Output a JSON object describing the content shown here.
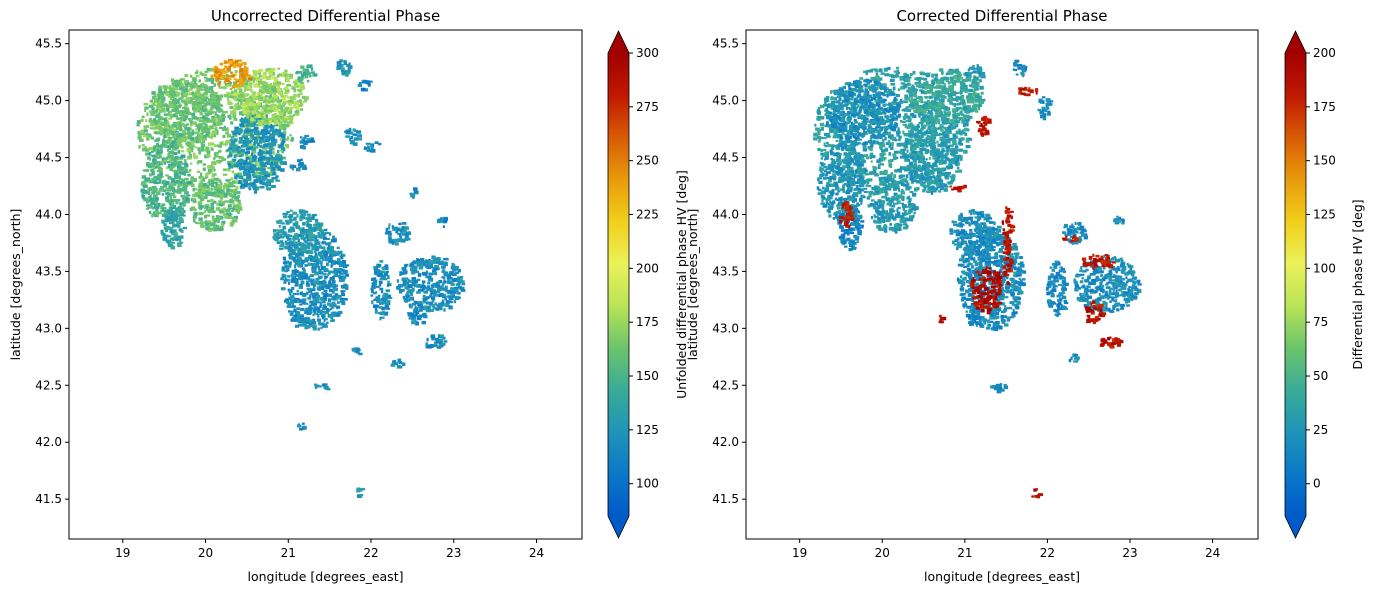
{
  "colormap": {
    "name": "HomeyerRainbow",
    "stops": [
      "#005ac8",
      "#0b78c8",
      "#1f94b8",
      "#3aab97",
      "#6cc46b",
      "#b9e457",
      "#ecf25a",
      "#f1cf1a",
      "#e89a0b",
      "#d85a05",
      "#c01800",
      "#a00000"
    ]
  },
  "chart_data": [
    {
      "type": "heatmap",
      "title": "Uncorrected Differential Phase",
      "xlabel": "longitude [degrees_east]",
      "ylabel": "latitude [degrees_north]",
      "xlim": [
        18.35,
        24.55
      ],
      "ylim": [
        41.15,
        45.62
      ],
      "xticks": [
        19,
        20,
        21,
        22,
        23,
        24
      ],
      "yticks": [
        41.5,
        42.0,
        42.5,
        43.0,
        43.5,
        44.0,
        44.5,
        45.0,
        45.5
      ],
      "colorbar": {
        "label": "Unfolded differential phase HV [deg]",
        "vmin": 85,
        "vmax": 300,
        "ticks": [
          100,
          125,
          150,
          175,
          200,
          225,
          250,
          275,
          300
        ],
        "extend": "both"
      },
      "echo_regions": [
        {
          "lon": 20.1,
          "lat": 44.75,
          "rlon": 0.95,
          "rlat": 0.55,
          "value": 165
        },
        {
          "lon": 19.75,
          "lat": 44.9,
          "rlon": 0.45,
          "rlat": 0.3,
          "value": 160
        },
        {
          "lon": 19.5,
          "lat": 44.3,
          "rlon": 0.3,
          "rlat": 0.35,
          "value": 150
        },
        {
          "lon": 20.6,
          "lat": 44.55,
          "rlon": 0.35,
          "rlat": 0.35,
          "value": 125
        },
        {
          "lon": 20.75,
          "lat": 45.05,
          "rlon": 0.45,
          "rlat": 0.25,
          "value": 175
        },
        {
          "lon": 20.3,
          "lat": 45.25,
          "rlon": 0.25,
          "rlat": 0.12,
          "value": 240
        },
        {
          "lon": 19.6,
          "lat": 43.9,
          "rlon": 0.15,
          "rlat": 0.2,
          "value": 140
        },
        {
          "lon": 20.1,
          "lat": 44.1,
          "rlon": 0.3,
          "rlat": 0.25,
          "value": 160
        },
        {
          "lon": 21.3,
          "lat": 43.45,
          "rlon": 0.4,
          "rlat": 0.45,
          "value": 120
        },
        {
          "lon": 21.1,
          "lat": 43.85,
          "rlon": 0.3,
          "rlat": 0.2,
          "value": 130
        },
        {
          "lon": 22.7,
          "lat": 43.4,
          "rlon": 0.4,
          "rlat": 0.25,
          "value": 120
        },
        {
          "lon": 22.3,
          "lat": 43.85,
          "rlon": 0.15,
          "rlat": 0.1,
          "value": 120
        },
        {
          "lon": 22.55,
          "lat": 43.15,
          "rlon": 0.12,
          "rlat": 0.1,
          "value": 120
        },
        {
          "lon": 22.75,
          "lat": 42.9,
          "rlon": 0.15,
          "rlat": 0.06,
          "value": 120
        },
        {
          "lon": 22.1,
          "lat": 43.35,
          "rlon": 0.12,
          "rlat": 0.25,
          "value": 120
        },
        {
          "lon": 21.65,
          "lat": 45.3,
          "rlon": 0.1,
          "rlat": 0.07,
          "value": 125
        },
        {
          "lon": 21.9,
          "lat": 45.15,
          "rlon": 0.08,
          "rlat": 0.05,
          "value": 115
        },
        {
          "lon": 21.75,
          "lat": 44.7,
          "rlon": 0.1,
          "rlat": 0.07,
          "value": 120
        },
        {
          "lon": 22.0,
          "lat": 44.6,
          "rlon": 0.1,
          "rlat": 0.05,
          "value": 115
        },
        {
          "lon": 21.2,
          "lat": 44.65,
          "rlon": 0.1,
          "rlat": 0.06,
          "value": 115
        },
        {
          "lon": 21.2,
          "lat": 45.25,
          "rlon": 0.12,
          "rlat": 0.08,
          "value": 150
        },
        {
          "lon": 21.1,
          "lat": 44.45,
          "rlon": 0.1,
          "rlat": 0.05,
          "value": 115
        },
        {
          "lon": 22.5,
          "lat": 44.2,
          "rlon": 0.05,
          "rlat": 0.04,
          "value": 115
        },
        {
          "lon": 21.1,
          "lat": 43.1,
          "rlon": 0.1,
          "rlat": 0.08,
          "value": 120
        },
        {
          "lon": 22.3,
          "lat": 42.7,
          "rlon": 0.08,
          "rlat": 0.04,
          "value": 115
        },
        {
          "lon": 21.4,
          "lat": 42.5,
          "rlon": 0.1,
          "rlat": 0.04,
          "value": 120
        },
        {
          "lon": 21.15,
          "lat": 42.15,
          "rlon": 0.05,
          "rlat": 0.03,
          "value": 115
        },
        {
          "lon": 21.85,
          "lat": 41.58,
          "rlon": 0.05,
          "rlat": 0.04,
          "value": 125
        },
        {
          "lon": 22.85,
          "lat": 43.95,
          "rlon": 0.06,
          "rlat": 0.05,
          "value": 115
        },
        {
          "lon": 21.8,
          "lat": 42.8,
          "rlon": 0.06,
          "rlat": 0.04,
          "value": 115
        }
      ]
    },
    {
      "type": "heatmap",
      "title": "Corrected Differential Phase",
      "xlabel": "longitude [degrees_east]",
      "ylabel": "latitude [degrees_north]",
      "xlim": [
        18.35,
        24.55
      ],
      "ylim": [
        41.15,
        45.62
      ],
      "xticks": [
        19,
        20,
        21,
        22,
        23,
        24
      ],
      "yticks": [
        41.5,
        42.0,
        42.5,
        43.0,
        43.5,
        44.0,
        44.5,
        45.0,
        45.5
      ],
      "colorbar": {
        "label": "Differential phase HV [deg]",
        "vmin": -15,
        "vmax": 200,
        "ticks": [
          0,
          25,
          50,
          75,
          100,
          125,
          150,
          175,
          200
        ],
        "extend": "both"
      },
      "echo_regions": [
        {
          "lon": 20.1,
          "lat": 44.75,
          "rlon": 0.95,
          "rlat": 0.55,
          "value": 35
        },
        {
          "lon": 19.75,
          "lat": 44.9,
          "rlon": 0.45,
          "rlat": 0.3,
          "value": 20
        },
        {
          "lon": 19.5,
          "lat": 44.3,
          "rlon": 0.3,
          "rlat": 0.35,
          "value": 25
        },
        {
          "lon": 20.6,
          "lat": 44.55,
          "rlon": 0.35,
          "rlat": 0.35,
          "value": 30
        },
        {
          "lon": 20.75,
          "lat": 45.05,
          "rlon": 0.45,
          "rlat": 0.25,
          "value": 40
        },
        {
          "lon": 19.6,
          "lat": 43.9,
          "rlon": 0.15,
          "rlat": 0.2,
          "value": 15
        },
        {
          "lon": 19.55,
          "lat": 44.0,
          "rlon": 0.08,
          "rlat": 0.12,
          "value": 185
        },
        {
          "lon": 20.1,
          "lat": 44.1,
          "rlon": 0.3,
          "rlat": 0.25,
          "value": 30
        },
        {
          "lon": 21.3,
          "lat": 43.45,
          "rlon": 0.4,
          "rlat": 0.45,
          "value": 20
        },
        {
          "lon": 21.25,
          "lat": 43.35,
          "rlon": 0.2,
          "rlat": 0.2,
          "value": 190
        },
        {
          "lon": 21.5,
          "lat": 43.6,
          "rlon": 0.05,
          "rlat": 0.2,
          "value": 185
        },
        {
          "lon": 21.1,
          "lat": 43.85,
          "rlon": 0.3,
          "rlat": 0.2,
          "value": 20
        },
        {
          "lon": 22.7,
          "lat": 43.4,
          "rlon": 0.4,
          "rlat": 0.25,
          "value": 20
        },
        {
          "lon": 22.6,
          "lat": 43.6,
          "rlon": 0.2,
          "rlat": 0.06,
          "value": 185
        },
        {
          "lon": 22.3,
          "lat": 43.85,
          "rlon": 0.15,
          "rlat": 0.1,
          "value": 20
        },
        {
          "lon": 22.25,
          "lat": 43.8,
          "rlon": 0.1,
          "rlat": 0.03,
          "value": 185
        },
        {
          "lon": 22.55,
          "lat": 43.15,
          "rlon": 0.12,
          "rlat": 0.1,
          "value": 185
        },
        {
          "lon": 22.75,
          "lat": 42.88,
          "rlon": 0.15,
          "rlat": 0.05,
          "value": 185
        },
        {
          "lon": 21.75,
          "lat": 45.1,
          "rlon": 0.12,
          "rlat": 0.04,
          "value": 185
        },
        {
          "lon": 21.95,
          "lat": 44.95,
          "rlon": 0.08,
          "rlat": 0.1,
          "value": 15
        },
        {
          "lon": 21.2,
          "lat": 44.8,
          "rlon": 0.08,
          "rlat": 0.1,
          "value": 185
        },
        {
          "lon": 21.65,
          "lat": 45.3,
          "rlon": 0.1,
          "rlat": 0.07,
          "value": 15
        },
        {
          "lon": 20.9,
          "lat": 44.25,
          "rlon": 0.1,
          "rlat": 0.04,
          "value": 185
        },
        {
          "lon": 21.1,
          "lat": 45.25,
          "rlon": 0.12,
          "rlat": 0.08,
          "value": 30
        },
        {
          "lon": 22.1,
          "lat": 43.35,
          "rlon": 0.12,
          "rlat": 0.25,
          "value": 15
        },
        {
          "lon": 21.1,
          "lat": 43.1,
          "rlon": 0.1,
          "rlat": 0.08,
          "value": 15
        },
        {
          "lon": 20.7,
          "lat": 43.1,
          "rlon": 0.03,
          "rlat": 0.05,
          "value": 185
        },
        {
          "lon": 21.4,
          "lat": 42.5,
          "rlon": 0.1,
          "rlat": 0.04,
          "value": 15
        },
        {
          "lon": 21.85,
          "lat": 41.55,
          "rlon": 0.05,
          "rlat": 0.05,
          "value": 185
        },
        {
          "lon": 21.5,
          "lat": 43.9,
          "rlon": 0.06,
          "rlat": 0.2,
          "value": 185
        },
        {
          "lon": 22.3,
          "lat": 42.75,
          "rlon": 0.06,
          "rlat": 0.04,
          "value": 15
        },
        {
          "lon": 22.85,
          "lat": 43.95,
          "rlon": 0.06,
          "rlat": 0.05,
          "value": 20
        }
      ]
    }
  ]
}
